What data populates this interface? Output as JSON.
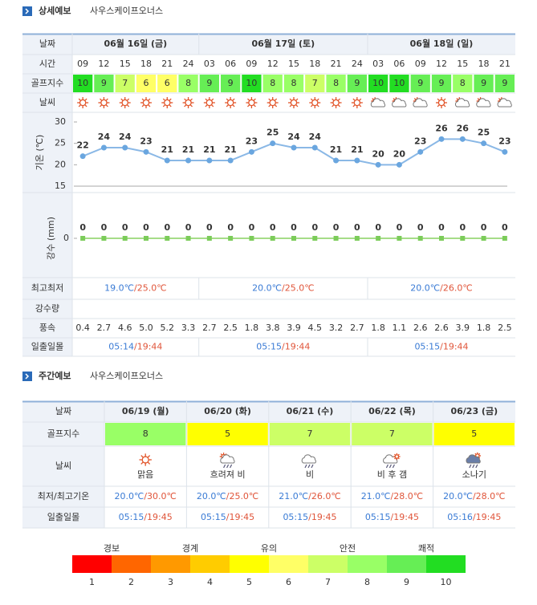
{
  "detail": {
    "title": "상세예보",
    "place": "사우스케이프오너스",
    "labels": {
      "date": "날짜",
      "time": "시간",
      "golf": "골프지수",
      "weather": "날씨",
      "temp_axis": "기온 (℃)",
      "rain_axis": "강수 (mm)",
      "minmax": "최고최저",
      "rain": "강수량",
      "wind": "풍속",
      "sun": "일출일몰"
    },
    "dates": [
      "06월 16일 (금)",
      "06월 17일 (토)",
      "06월 18일 (일)"
    ],
    "times": [
      "09",
      "12",
      "15",
      "18",
      "21",
      "24",
      "03",
      "06",
      "09",
      "12",
      "15",
      "18",
      "21",
      "24",
      "03",
      "06",
      "09",
      "12",
      "15",
      "18",
      "21"
    ],
    "golf_index": [
      10,
      9,
      7,
      6,
      6,
      8,
      9,
      9,
      10,
      8,
      8,
      7,
      8,
      9,
      10,
      10,
      9,
      9,
      8,
      9,
      9
    ],
    "temperature": {
      "values": [
        22,
        24,
        24,
        23,
        21,
        21,
        21,
        21,
        23,
        25,
        24,
        24,
        21,
        21,
        20,
        20,
        23,
        26,
        26,
        25,
        23
      ],
      "ylim": [
        15,
        30
      ],
      "yticks": [
        15,
        20,
        25,
        30
      ]
    },
    "precipitation": {
      "values": [
        0,
        0,
        0,
        0,
        0,
        0,
        0,
        0,
        0,
        0,
        0,
        0,
        0,
        0,
        0,
        0,
        0,
        0,
        0,
        0,
        0
      ],
      "yticks": [
        0
      ]
    },
    "minmax": [
      {
        "low": "19.0℃",
        "high": "/25.0℃"
      },
      {
        "low": "20.0℃",
        "high": "/25.0℃"
      },
      {
        "low": "20.0℃",
        "high": "/26.0℃"
      }
    ],
    "wind": [
      "0.4",
      "2.7",
      "4.6",
      "5.0",
      "5.2",
      "3.3",
      "2.7",
      "2.5",
      "1.8",
      "3.8",
      "3.9",
      "4.5",
      "3.2",
      "2.7",
      "1.8",
      "1.1",
      "2.6",
      "2.6",
      "3.9",
      "1.8",
      "2.5"
    ],
    "sun": [
      {
        "rise": "05:14",
        "set": "/19:44"
      },
      {
        "rise": "05:15",
        "set": "/19:44"
      },
      {
        "rise": "05:15",
        "set": "/19:44"
      }
    ]
  },
  "weekly": {
    "title": "주간예보",
    "place": "사우스케이프오너스",
    "labels": {
      "date": "날짜",
      "golf": "골프지수",
      "weather": "날씨",
      "minmax": "최저/최고기온",
      "sun": "일출일몰"
    },
    "days": [
      {
        "date": "06/19 (월)",
        "golf": 8,
        "weather": "맑음",
        "low": "20.0℃",
        "high": "/30.0℃",
        "rise": "05:15",
        "set": "/19:45"
      },
      {
        "date": "06/20 (화)",
        "golf": 5,
        "weather": "흐려져 비",
        "low": "20.0℃",
        "high": "/25.0℃",
        "rise": "05:15",
        "set": "/19:45"
      },
      {
        "date": "06/21 (수)",
        "golf": 7,
        "weather": "비",
        "low": "21.0℃",
        "high": "/26.0℃",
        "rise": "05:15",
        "set": "/19:45"
      },
      {
        "date": "06/22 (목)",
        "golf": 7,
        "weather": "비 후 갬",
        "low": "21.0℃",
        "high": "/28.0℃",
        "rise": "05:15",
        "set": "/19:45"
      },
      {
        "date": "06/23 (금)",
        "golf": 5,
        "weather": "소나기",
        "low": "20.0℃",
        "high": "/28.0℃",
        "rise": "05:16",
        "set": "/19:45"
      }
    ]
  },
  "legend": {
    "names": [
      "경보",
      "경계",
      "유의",
      "안전",
      "쾌적"
    ],
    "levels": [
      {
        "label": "1",
        "color": "#ff0000"
      },
      {
        "label": "2",
        "color": "#ff6600"
      },
      {
        "label": "3",
        "color": "#ff9900"
      },
      {
        "label": "4",
        "color": "#ffcc00"
      },
      {
        "label": "5",
        "color": "#ffff00"
      },
      {
        "label": "6",
        "color": "#ffff66"
      },
      {
        "label": "7",
        "color": "#ccff66"
      },
      {
        "label": "8",
        "color": "#99ff66"
      },
      {
        "label": "9",
        "color": "#66ee55"
      },
      {
        "label": "10",
        "color": "#22dd22"
      }
    ]
  }
}
